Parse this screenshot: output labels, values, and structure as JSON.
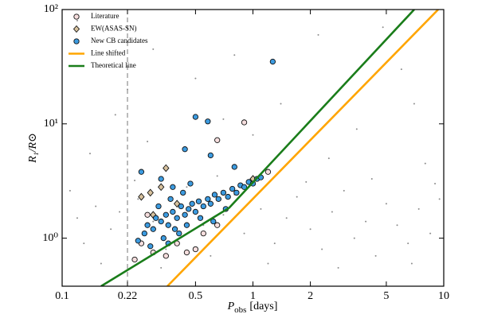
{
  "chart_data": {
    "type": "scatter",
    "xlabel": {
      "symbol": "P",
      "subscript": "obs",
      "unit": "[days]"
    },
    "ylabel": "R₁/R⊙",
    "xscale": "log",
    "yscale": "log",
    "xlim": [
      0.1,
      10
    ],
    "ylim": [
      0.38,
      100
    ],
    "xticks": [
      0.1,
      0.22,
      0.5,
      1,
      2,
      5,
      10
    ],
    "yticks": [
      {
        "value": 1,
        "label": "10⁰"
      },
      {
        "value": 10,
        "label": "10¹"
      },
      {
        "value": 100,
        "label": "10²"
      }
    ],
    "vline": 0.22,
    "legend": "upper left",
    "series": [
      {
        "style": "dot",
        "color": "#8c8c8c",
        "x": [
          0.12,
          0.15,
          0.18,
          0.11,
          0.13,
          0.2,
          0.25,
          0.3,
          0.35,
          0.4,
          0.45,
          0.55,
          0.6,
          0.7,
          0.8,
          0.9,
          1.1,
          1.3,
          1.5,
          1.7,
          2.0,
          2.3,
          2.6,
          3.0,
          3.4,
          3.9,
          4.4,
          5.0,
          5.7,
          6.5,
          7.4,
          8.5,
          9.5,
          0.14,
          0.19,
          0.28,
          0.5,
          0.8,
          1.4,
          2.2,
          3.5,
          6,
          8,
          0.16,
          0.24,
          0.33,
          0.65,
          1.2,
          1.9,
          2.8,
          4.2,
          6.8,
          9,
          0.12,
          0.3,
          1.0,
          4.8,
          0.22,
          0.7,
          2.5,
          7
        ],
        "values": [
          1.5,
          1.9,
          1.2,
          2.6,
          0.9,
          1.7,
          2.2,
          1.4,
          0.8,
          1.9,
          2.8,
          1.3,
          0.7,
          1.6,
          2.4,
          1.1,
          1.8,
          0.9,
          1.5,
          2.3,
          1.2,
          0.8,
          1.7,
          2.6,
          1.0,
          1.4,
          0.7,
          2.0,
          1.3,
          0.9,
          1.8,
          1.1,
          2.2,
          5.5,
          12,
          7,
          25,
          40,
          15,
          60,
          9,
          30,
          4.5,
          0.6,
          3.2,
          0.55,
          3.5,
          0.6,
          3.1,
          0.55,
          3.3,
          0.6,
          3.0,
          80,
          45,
          8,
          70,
          20,
          11,
          5,
          15
        ]
      },
      {
        "name": "Literature",
        "style": "circle",
        "color": "#f6dede",
        "x": [
          0.24,
          0.26,
          0.3,
          0.35,
          0.4,
          0.45,
          0.55,
          0.65,
          0.9,
          0.65,
          1.2,
          0.28,
          0.5
        ],
        "values": [
          0.65,
          0.9,
          0.75,
          0.7,
          0.9,
          0.75,
          1.1,
          1.3,
          10.3,
          7.2,
          3.8,
          1.6,
          0.8
        ]
      },
      {
        "name": "EW(ASAS-SN)",
        "style": "diamond",
        "color": "#d8c29e",
        "x": [
          0.26,
          0.3,
          0.35,
          0.33,
          0.4,
          0.29,
          1.0
        ],
        "values": [
          2.3,
          1.6,
          4.1,
          2.8,
          2.0,
          2.5,
          3.3
        ]
      },
      {
        "name": "New CB candidates",
        "style": "circle",
        "color": "#3c9be0",
        "x": [
          0.25,
          0.27,
          0.28,
          0.3,
          0.31,
          0.33,
          0.35,
          0.36,
          0.38,
          0.4,
          0.42,
          0.44,
          0.46,
          0.48,
          0.5,
          0.52,
          0.55,
          0.58,
          0.6,
          0.63,
          0.66,
          0.7,
          0.74,
          0.78,
          0.82,
          0.86,
          0.9,
          0.95,
          1.0,
          1.05,
          1.1,
          0.29,
          0.34,
          0.39,
          0.45,
          0.53,
          0.32,
          0.37,
          0.43,
          0.41,
          0.26,
          0.33,
          0.5,
          0.58,
          0.44,
          0.6,
          0.8,
          1.27,
          0.38,
          0.47,
          0.62,
          0.72,
          0.36
        ],
        "values": [
          0.95,
          1.1,
          1.3,
          1.2,
          1.5,
          1.4,
          1.6,
          1.3,
          1.7,
          1.5,
          1.9,
          1.6,
          1.8,
          2.0,
          1.7,
          2.1,
          1.9,
          2.2,
          2.0,
          2.4,
          2.2,
          2.5,
          2.3,
          2.7,
          2.5,
          2.9,
          2.8,
          3.1,
          3.0,
          3.3,
          3.4,
          0.85,
          1.0,
          1.2,
          1.3,
          1.5,
          1.9,
          2.2,
          2.5,
          1.1,
          3.8,
          3.3,
          11.5,
          10.5,
          6,
          5.3,
          4.2,
          35,
          2.8,
          3.0,
          1.4,
          1.8,
          0.9
        ]
      },
      {
        "name": "Line shifted",
        "style": "line",
        "color": "#ffa500",
        "x": [
          0.356,
          9.35
        ],
        "values": [
          0.38,
          100
        ]
      },
      {
        "name": "Theoretical line",
        "style": "line",
        "color": "#1a7d1a",
        "x": [
          0.16,
          0.75,
          7.0
        ],
        "values": [
          0.38,
          1.84,
          100
        ]
      }
    ]
  }
}
